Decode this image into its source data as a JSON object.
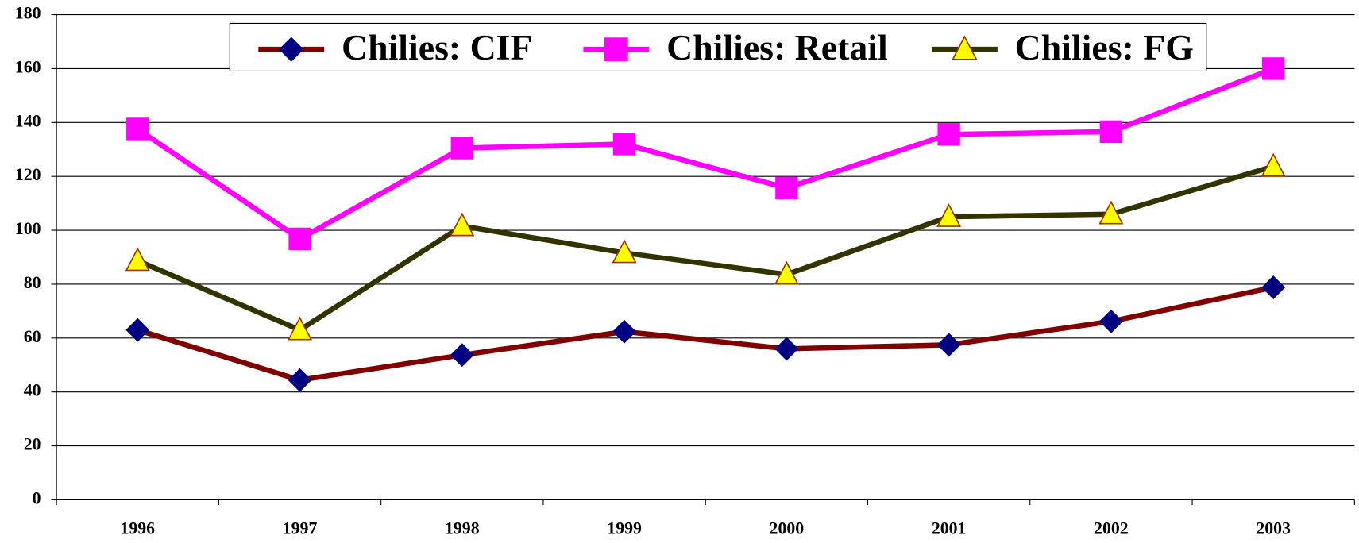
{
  "chart_data": {
    "type": "line",
    "categories": [
      "1996",
      "1997",
      "1998",
      "1999",
      "2000",
      "2001",
      "2002",
      "2003"
    ],
    "series": [
      {
        "name": "Chilies: CIF",
        "color": "#800000",
        "marker": "diamond",
        "marker_color": "#000080",
        "values": [
          63,
          44.4,
          53.7,
          62.4,
          56,
          57.5,
          66.2,
          78.8
        ]
      },
      {
        "name": "Chilies: Retail",
        "color": "#ff00ff",
        "marker": "square",
        "marker_color": "#ff00ff",
        "values": [
          137.6,
          96.8,
          130.5,
          132,
          115.7,
          135.6,
          136.6,
          160
        ]
      },
      {
        "name": "Chilies: FG",
        "color": "#333300",
        "marker": "triangle",
        "marker_color": "#ffff00",
        "values": [
          88.7,
          63,
          101.6,
          91.6,
          83.6,
          105,
          106,
          123.7
        ]
      }
    ],
    "ylim": [
      0,
      180
    ],
    "yticks": [
      0,
      20,
      40,
      60,
      80,
      100,
      120,
      140,
      160,
      180
    ],
    "grid": true,
    "legend": "top"
  }
}
